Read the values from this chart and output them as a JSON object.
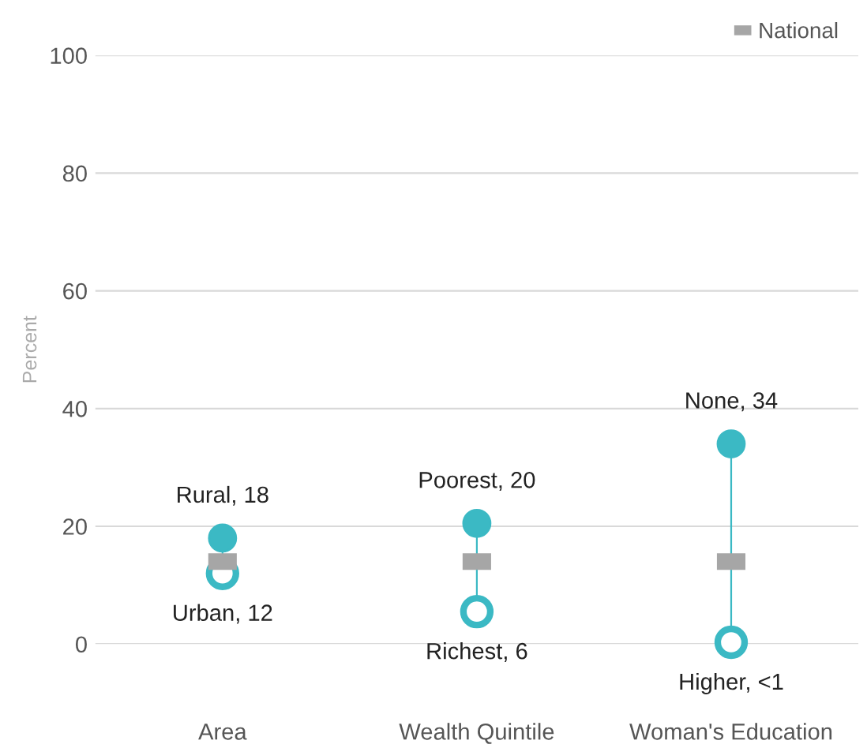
{
  "chart_data": {
    "type": "scatter",
    "ylabel": "Percent",
    "categories": [
      "Area",
      "Wealth Quintile",
      "Woman's Education"
    ],
    "series": [
      {
        "color": "#3bb9c4",
        "marker": "circle",
        "values": [
          18,
          20.5,
          34
        ],
        "value_labels": [
          "Rural, 18",
          "Poorest, 20",
          "None, 34"
        ]
      },
      {
        "color": "#3bb9c4",
        "marker": "circle",
        "values": [
          12,
          5.5,
          0.3
        ],
        "value_labels": [
          "Urban, 12",
          "Richest, 6",
          "Higher, <1"
        ]
      },
      {
        "name": "National",
        "color": "#a6a6a6",
        "marker": "square",
        "values": [
          14,
          14,
          14
        ]
      }
    ],
    "ylim": [
      0,
      100
    ],
    "yticks": [
      0,
      20,
      40,
      60,
      80,
      100
    ],
    "grid": "y",
    "legend": "top right"
  }
}
